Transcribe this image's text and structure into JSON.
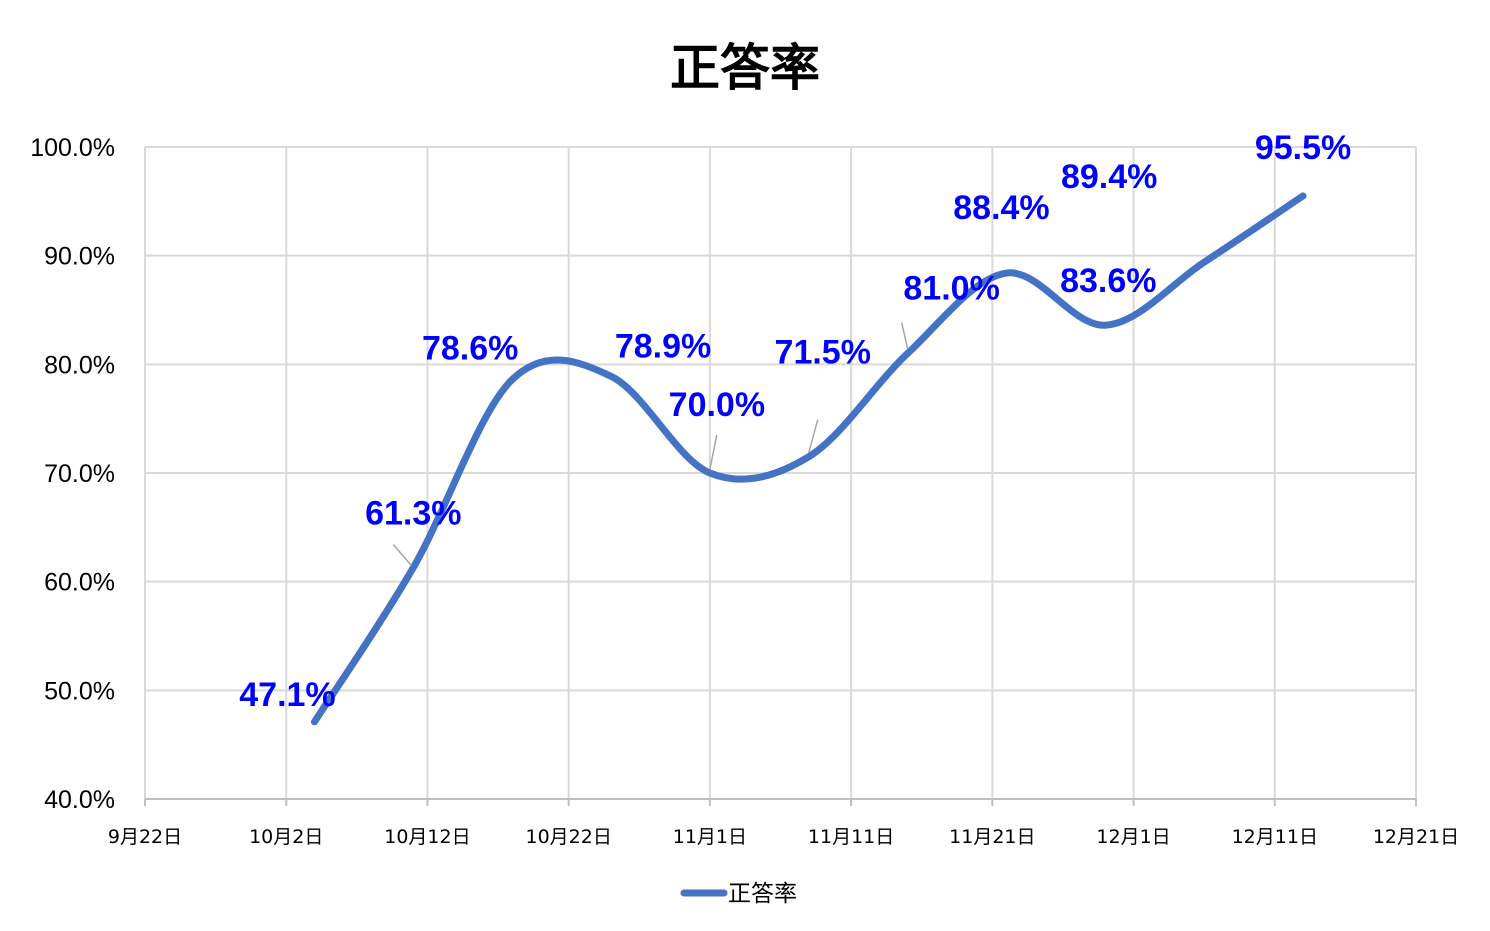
{
  "chart_data": {
    "type": "line",
    "title": "正答率",
    "xlabel": "",
    "ylabel": "",
    "smooth": true,
    "x_ticks": [
      "9月22日",
      "10月2日",
      "10月12日",
      "10月22日",
      "11月1日",
      "11月11日",
      "11月21日",
      "12月1日",
      "12月11日",
      "12月21日"
    ],
    "xlim": [
      "2023-09-22",
      "2023-12-21"
    ],
    "ylim": [
      40,
      100
    ],
    "y_ticks": [
      "40.0%",
      "50.0%",
      "60.0%",
      "70.0%",
      "80.0%",
      "90.0%",
      "100.0%"
    ],
    "grid": true,
    "legend_position": "bottom",
    "series": [
      {
        "name": "正答率",
        "color": "#4472C4",
        "x": [
          "2023-10-04",
          "2023-10-11",
          "2023-10-18",
          "2023-10-25",
          "2023-11-01",
          "2023-11-08",
          "2023-11-15",
          "2023-11-22",
          "2023-11-29",
          "2023-12-06",
          "2023-12-13"
        ],
        "values": [
          47.1,
          61.3,
          78.6,
          78.9,
          70.0,
          71.5,
          81.0,
          88.4,
          83.6,
          89.4,
          95.5
        ],
        "labels": [
          "47.1%",
          "61.3%",
          "78.6%",
          "78.9%",
          "70.0%",
          "71.5%",
          "81.0%",
          "88.4%",
          "83.6%",
          "89.4%",
          "95.5%"
        ]
      }
    ],
    "label_color": "#0000FF"
  }
}
